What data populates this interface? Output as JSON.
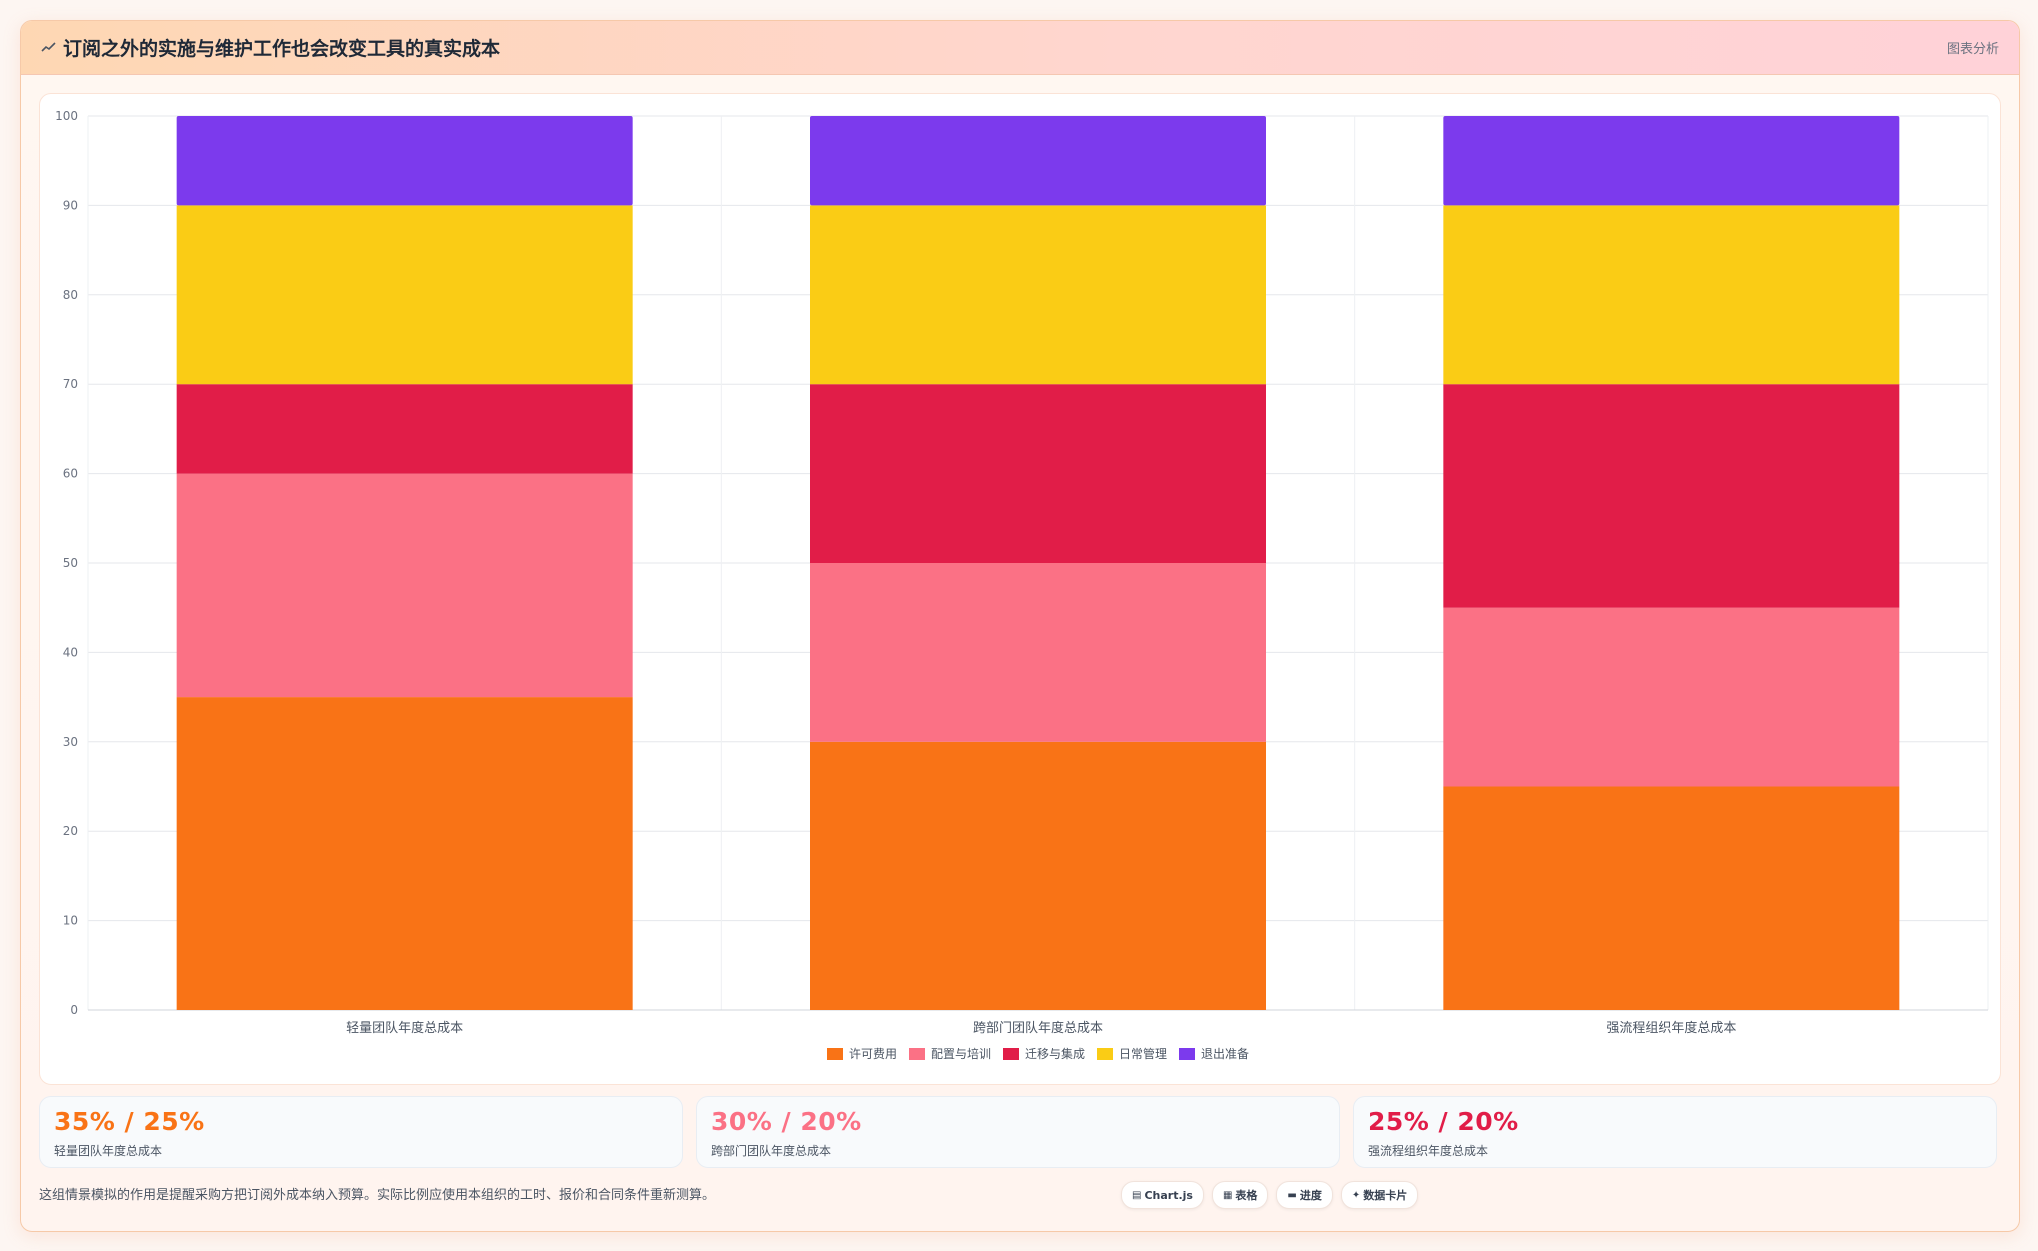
{
  "header": {
    "icon": "line-chart-icon",
    "title": "订阅之外的实施与维护工作也会改变工具的真实成本",
    "right_label": "图表分析"
  },
  "chart_data": {
    "type": "bar",
    "stacked": true,
    "categories": [
      "轻量团队年度总成本",
      "跨部门团队年度总成本",
      "强流程组织年度总成本"
    ],
    "series": [
      {
        "name": "许可费用",
        "color": "#f97316",
        "values": [
          35,
          30,
          25
        ]
      },
      {
        "name": "配置与培训",
        "color": "#fb7185",
        "values": [
          25,
          20,
          20
        ]
      },
      {
        "name": "迁移与集成",
        "color": "#e11d48",
        "values": [
          10,
          20,
          25
        ]
      },
      {
        "name": "日常管理",
        "color": "#facc15",
        "values": [
          20,
          20,
          20
        ]
      },
      {
        "name": "退出准备",
        "color": "#7c3aed",
        "values": [
          10,
          10,
          10
        ]
      }
    ],
    "ylim": [
      0,
      100
    ],
    "yticks": [
      "0",
      "10",
      "20",
      "30",
      "40",
      "50",
      "60",
      "70",
      "80",
      "90",
      "100"
    ],
    "grid": true,
    "legend_position": "bottom"
  },
  "stats": [
    {
      "value": "35% / 25%",
      "label": "轻量团队年度总成本",
      "color": "#f97316"
    },
    {
      "value": "30% / 20%",
      "label": "跨部门团队年度总成本",
      "color": "#fb7185"
    },
    {
      "value": "25% / 20%",
      "label": "强流程组织年度总成本",
      "color": "#e11d48"
    }
  ],
  "footnote": "这组情景模拟的作用是提醒采购方把订阅外成本纳入预算。实际比例应使用本组织的工时、报价和合同条件重新测算。",
  "chips": [
    {
      "icon": "chart-icon",
      "glyph": "▤",
      "label": "Chart.js"
    },
    {
      "icon": "table-icon",
      "glyph": "▦",
      "label": "表格"
    },
    {
      "icon": "progress-icon",
      "glyph": "▬",
      "label": "进度"
    },
    {
      "icon": "sparkle-icon",
      "glyph": "✦",
      "label": "数据卡片"
    }
  ]
}
